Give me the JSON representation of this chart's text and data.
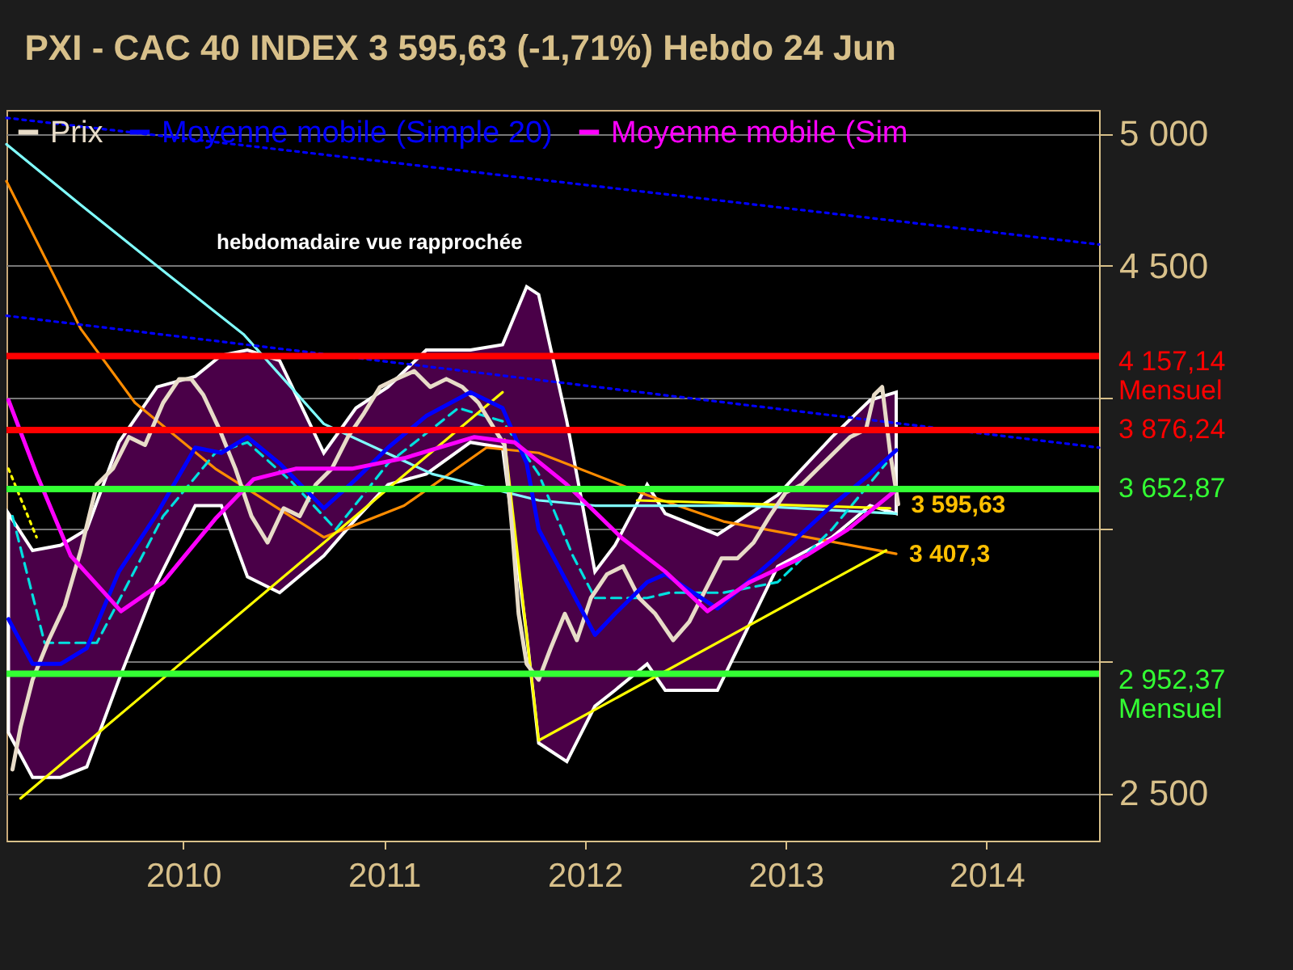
{
  "chart_data": {
    "type": "line",
    "title": "PXI - CAC 40 INDEX    3 595,63 (-1,71%)    Hebdo  24 Jun",
    "legend": "top left",
    "grid": "y",
    "marker": "none",
    "xlim": [
      2009.12,
      2014.56
    ],
    "xticks": [
      2010,
      2011,
      2012,
      2013,
      2014
    ],
    "ylim": [
      2320,
      5090
    ],
    "yticks": [
      {
        "value": 2500,
        "label": "2 500"
      },
      {
        "value": 3000,
        "label": null
      },
      {
        "value": 3500,
        "label": null
      },
      {
        "value": 4000,
        "label": null
      },
      {
        "value": 4500,
        "label": "4 500"
      },
      {
        "value": 5000,
        "label": "5 000"
      }
    ],
    "series": [
      {
        "name": "Prix",
        "color": "#e8dcc8",
        "x": [
          2009.15,
          2009.19,
          2009.25,
          2009.33,
          2009.41,
          2009.49,
          2009.57,
          2009.65,
          2009.73,
          2009.81,
          2009.9,
          2009.98,
          2010.04,
          2010.1,
          2010.18,
          2010.26,
          2010.34,
          2010.42,
          2010.5,
          2010.58,
          2010.66,
          2010.74,
          2010.82,
          2010.9,
          2010.98,
          2011.06,
          2011.15,
          2011.23,
          2011.31,
          2011.39,
          2011.47,
          2011.55,
          2011.6,
          2011.64,
          2011.67,
          2011.71,
          2011.77,
          2011.83,
          2011.9,
          2011.96,
          2012.03,
          2012.11,
          2012.19,
          2012.27,
          2012.35,
          2012.44,
          2012.52,
          2012.6,
          2012.68,
          2012.76,
          2012.84,
          2012.92,
          2013.0,
          2013.08,
          2013.16,
          2013.24,
          2013.32,
          2013.4,
          2013.44,
          2013.48,
          2013.52,
          2013.56
        ],
        "values": [
          2590,
          2750,
          2930,
          3080,
          3210,
          3420,
          3670,
          3730,
          3850,
          3820,
          3980,
          4070,
          4070,
          4010,
          3880,
          3730,
          3550,
          3450,
          3580,
          3550,
          3670,
          3730,
          3850,
          3940,
          4040,
          4070,
          4100,
          4040,
          4070,
          4040,
          3980,
          3880,
          3820,
          3480,
          3180,
          2990,
          2930,
          3050,
          3180,
          3080,
          3240,
          3330,
          3360,
          3240,
          3180,
          3080,
          3150,
          3270,
          3390,
          3390,
          3450,
          3550,
          3640,
          3670,
          3730,
          3790,
          3850,
          3880,
          4010,
          4040,
          3790,
          3595.63
        ]
      },
      {
        "name": "Moyenne mobile (Simple 20)",
        "color": "#0000ff",
        "x": [
          2009.13,
          2009.25,
          2009.39,
          2009.52,
          2009.68,
          2009.87,
          2010.06,
          2010.19,
          2010.32,
          2010.48,
          2010.7,
          2010.86,
          2011.02,
          2011.21,
          2011.43,
          2011.59,
          2011.71,
          2011.77,
          2011.91,
          2012.05,
          2012.15,
          2012.31,
          2012.4,
          2012.66,
          2012.96,
          2013.23,
          2013.42,
          2013.55
        ],
        "values": [
          3160,
          2990,
          2990,
          3050,
          3340,
          3560,
          3810,
          3790,
          3850,
          3750,
          3580,
          3690,
          3810,
          3930,
          4020,
          3960,
          3750,
          3500,
          3300,
          3100,
          3180,
          3300,
          3330,
          3200,
          3400,
          3590,
          3710,
          3800
        ],
        "upper": [
          3560,
          3420,
          3440,
          3500,
          3830,
          4040,
          4080,
          4160,
          4180,
          4140,
          3790,
          3960,
          4040,
          4180,
          4180,
          4200,
          4420,
          4390,
          3910,
          3340,
          3440,
          3670,
          3560,
          3480,
          3630,
          3850,
          3990,
          4020
        ],
        "lower": [
          2730,
          2560,
          2560,
          2600,
          2930,
          3300,
          3590,
          3590,
          3320,
          3260,
          3400,
          3540,
          3670,
          3710,
          3830,
          3810,
          3100,
          2690,
          2620,
          2830,
          2890,
          2990,
          2890,
          2890,
          3360,
          3470,
          3590,
          3560
        ]
      },
      {
        "name": "Moyenne mobile (Sim",
        "color": "#ff00ff",
        "x": [
          2009.13,
          2009.27,
          2009.44,
          2009.69,
          2009.9,
          2010.16,
          2010.35,
          2010.56,
          2010.84,
          2011.1,
          2011.45,
          2011.65,
          2011.91,
          2012.18,
          2012.4,
          2012.61,
          2012.82,
          2013.1,
          2013.31,
          2013.55
        ],
        "values": [
          3990,
          3710,
          3400,
          3190,
          3300,
          3540,
          3690,
          3730,
          3730,
          3770,
          3850,
          3830,
          3670,
          3470,
          3340,
          3190,
          3300,
          3400,
          3500,
          3650
        ]
      },
      {
        "color": "#ff8c00",
        "x": [
          2009.12,
          2009.49,
          2009.76,
          2010.16,
          2010.7,
          2011.1,
          2011.51,
          2011.77,
          2012.31,
          2012.69,
          2013.55
        ],
        "values": [
          4820,
          4260,
          3980,
          3730,
          3470,
          3590,
          3810,
          3790,
          3630,
          3530,
          3407.3
        ]
      },
      {
        "color": "#80ffff",
        "x": [
          2009.12,
          2009.49,
          2009.9,
          2010.3,
          2010.7,
          2011.24,
          2011.77,
          2012.05,
          2012.82,
          2013.55
        ],
        "values": [
          4960,
          4730,
          4480,
          4240,
          3900,
          3710,
          3610,
          3590,
          3590,
          3560
        ]
      },
      {
        "color": "#00e0e0",
        "line_style": "dashed",
        "x": [
          2009.15,
          2009.31,
          2009.57,
          2009.9,
          2010.16,
          2010.32,
          2010.54,
          2010.76,
          2011.02,
          2011.37,
          2011.59,
          2011.77,
          2011.94,
          2012.05,
          2012.31,
          2012.42,
          2012.69,
          2012.96,
          2013.23,
          2013.5
        ],
        "values": [
          3550,
          3070,
          3070,
          3550,
          3790,
          3830,
          3680,
          3500,
          3750,
          3960,
          3910,
          3710,
          3400,
          3240,
          3240,
          3260,
          3260,
          3300,
          3500,
          3750
        ]
      },
      {
        "color": "#0000ff",
        "line_style": "dotted",
        "x": [
          2009.12,
          2014.56
        ],
        "values": [
          5060,
          4580
        ]
      },
      {
        "color": "#0000ff",
        "line_style": "dotted",
        "x": [
          2009.12,
          2014.56
        ],
        "values": [
          4310,
          3810
        ]
      },
      {
        "color": "#ffff00",
        "x": [
          2009.19,
          2011.59
        ],
        "values": [
          2480,
          4020
        ]
      },
      {
        "color": "#ffff00",
        "x": [
          2011.6,
          2011.77,
          2013.5
        ],
        "values": [
          3840,
          2700,
          3420
        ]
      },
      {
        "color": "#ffff00",
        "x": [
          2012.26,
          2013.52
        ],
        "values": [
          3610,
          3580
        ]
      },
      {
        "color": "#ffff00",
        "line_style": "dotted",
        "x": [
          2009.13,
          2009.27
        ],
        "values": [
          3730,
          3470
        ]
      }
    ],
    "ref_lines": [
      {
        "axis": "y",
        "value": 4157.14,
        "label": "4 157,14\nMensuel",
        "color": "#ff0000"
      },
      {
        "axis": "y",
        "value": 3876.24,
        "label": "3 876,24",
        "color": "#ff0000"
      },
      {
        "axis": "y",
        "value": 3652.87,
        "label": "3 652,87",
        "color": "#33ff33"
      },
      {
        "axis": "y",
        "value": 2952.37,
        "label": "2 952,37\nMensuel",
        "color": "#33ff33"
      }
    ],
    "annotations": [
      "hebdomadaire vue rapprochée",
      {
        "text": "3 595,63",
        "x": 2013.56,
        "y": 3595.63
      },
      {
        "text": "3 407,3",
        "x": 2013.55,
        "y": 3407.3
      }
    ]
  }
}
